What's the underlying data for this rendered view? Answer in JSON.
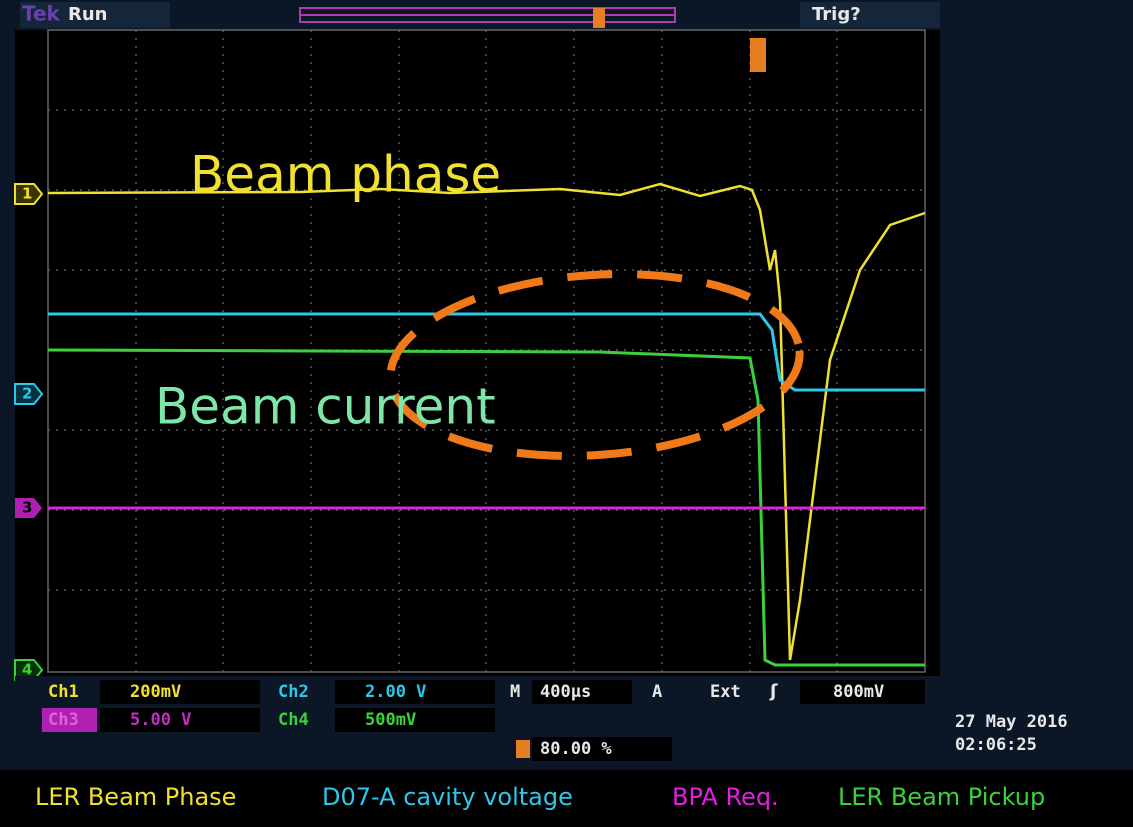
{
  "header": {
    "brand": "Tek",
    "state": "Run",
    "trigger": "Trig?"
  },
  "annotations": {
    "phase": "Beam phase",
    "current": "Beam current"
  },
  "markers": {
    "ch1": "1",
    "ch2": "2",
    "ch3": "3",
    "ch4": "4"
  },
  "status": {
    "ch1": "Ch1",
    "ch1_scale": "200mV",
    "ch2": "Ch2",
    "ch2_scale": "2.00 V",
    "time_label": "M",
    "time_scale": "400µs",
    "trig_mode": "A",
    "trig_source": "Ext",
    "trig_level": "800mV",
    "ch3": "Ch3",
    "ch3_scale": "5.00 V",
    "ch4": "Ch4",
    "ch4_scale": "500mV",
    "position": "80.00 %",
    "date": "27 May 2016",
    "time": "02:06:25"
  },
  "legend": {
    "ch1": "LER Beam Phase",
    "ch2": "D07-A cavity voltage",
    "ch3": "BPA Req.",
    "ch4": "LER Beam Pickup"
  }
}
